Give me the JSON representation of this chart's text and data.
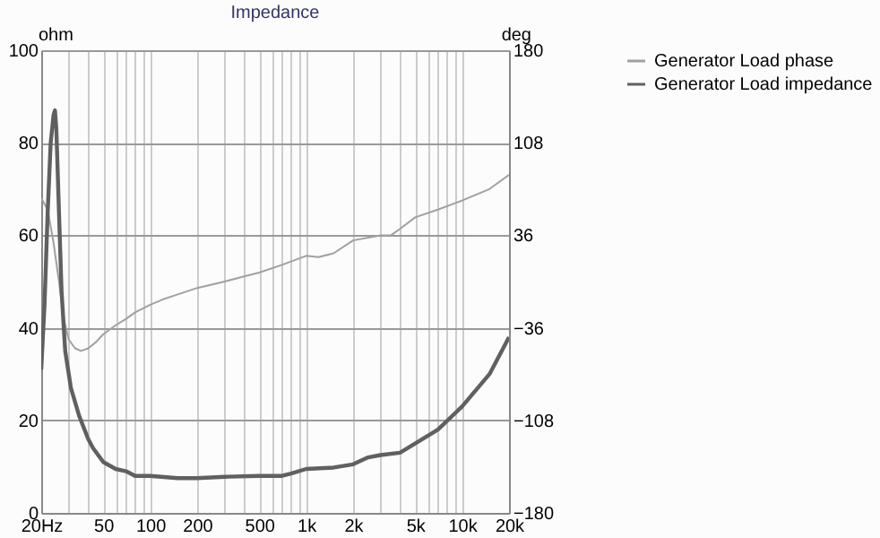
{
  "chart_data": {
    "type": "line",
    "title": "Impedance",
    "ylabel": "ohm",
    "y2label": "deg",
    "xlim": [
      20,
      20000
    ],
    "ylim": [
      0,
      100
    ],
    "y2lim": [
      -180,
      180
    ],
    "xticks": [
      {
        "value": 20,
        "label": "20Hz"
      },
      {
        "value": 30,
        "label": null
      },
      {
        "value": 40,
        "label": null
      },
      50,
      {
        "value": 60,
        "label": null
      },
      {
        "value": 70,
        "label": null
      },
      {
        "value": 80,
        "label": null
      },
      {
        "value": 90,
        "label": null
      },
      100,
      200,
      {
        "value": 300,
        "label": null
      },
      {
        "value": 400,
        "label": null
      },
      500,
      {
        "value": 600,
        "label": null
      },
      {
        "value": 700,
        "label": null
      },
      {
        "value": 800,
        "label": null
      },
      {
        "value": 900,
        "label": null
      },
      {
        "value": 1000,
        "label": "1k"
      },
      {
        "value": 2000,
        "label": "2k"
      },
      {
        "value": 3000,
        "label": null
      },
      {
        "value": 4000,
        "label": null
      },
      {
        "value": 5000,
        "label": "5k"
      },
      {
        "value": 6000,
        "label": null
      },
      {
        "value": 7000,
        "label": null
      },
      {
        "value": 8000,
        "label": null
      },
      {
        "value": 9000,
        "label": null
      },
      {
        "value": 10000,
        "label": "10k"
      },
      {
        "value": 20000,
        "label": "20k"
      }
    ],
    "yticks": [
      0,
      20,
      40,
      60,
      80,
      100
    ],
    "y2ticks": [
      -180,
      -108,
      -36,
      36,
      108,
      180
    ],
    "log": "x",
    "grid": true,
    "legend": "right",
    "series": [
      {
        "name": "Generator Load phase",
        "color": "#a0a0a0",
        "axis": "y2",
        "x": [
          20,
          22,
          24,
          26,
          28,
          30,
          33,
          36,
          40,
          45,
          50,
          60,
          70,
          80,
          100,
          120,
          150,
          200,
          300,
          400,
          500,
          700,
          1000,
          1200,
          1500,
          2000,
          3000,
          3500,
          4000,
          5000,
          7000,
          10000,
          15000,
          20000
        ],
        "values": [
          65,
          56,
          30,
          0,
          -30,
          -45,
          -52,
          -54,
          -52,
          -47,
          -41,
          -34,
          -29,
          -24,
          -18,
          -14,
          -10,
          -5,
          0,
          4,
          7,
          13,
          20,
          19,
          22,
          32,
          36,
          36,
          41,
          50,
          56,
          63,
          72,
          83
        ]
      },
      {
        "name": "Generator Load impedance",
        "color": "#606060",
        "x": [
          20,
          21,
          22,
          23,
          24,
          24.5,
          25,
          26,
          27,
          28.5,
          31,
          35,
          40,
          43,
          50,
          60,
          70,
          80,
          100,
          150,
          200,
          300,
          500,
          700,
          800,
          1000,
          1500,
          2000,
          2500,
          3000,
          4000,
          5000,
          7000,
          10000,
          15000,
          20000
        ],
        "values": [
          31,
          45,
          65,
          80,
          86,
          87,
          83,
          65,
          48,
          35,
          27,
          21,
          16,
          14,
          11,
          9.5,
          9,
          8,
          8,
          7.5,
          7.5,
          7.8,
          8,
          8,
          8.5,
          9.5,
          9.8,
          10.5,
          12,
          12.5,
          13,
          15,
          18,
          23,
          30,
          38
        ]
      }
    ]
  }
}
